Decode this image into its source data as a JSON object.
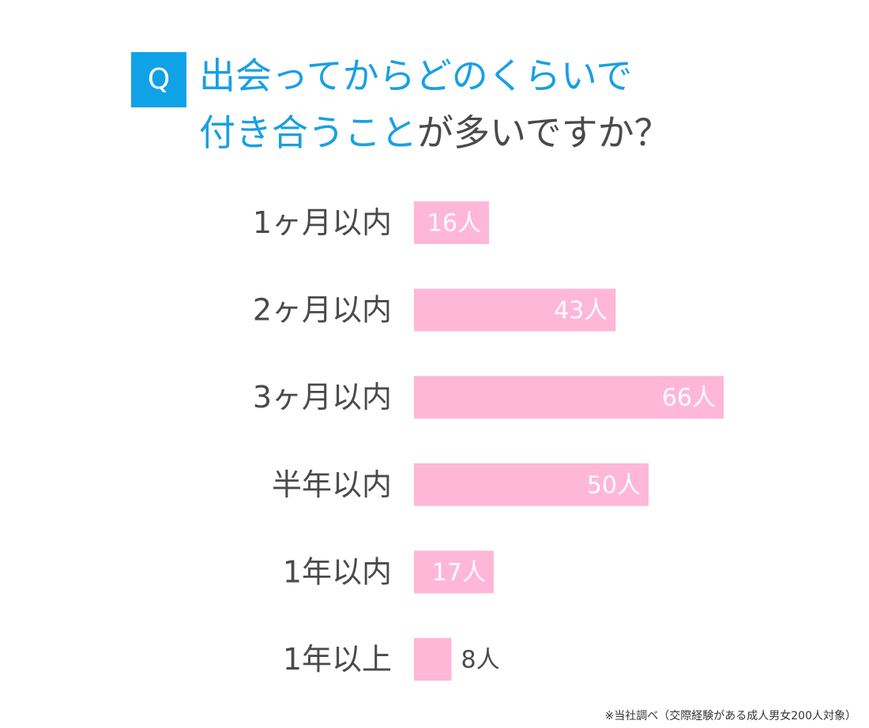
{
  "badge": "Q",
  "title": {
    "line1": "出会ってからどのくらいで",
    "line2_highlight": "付き合うこと",
    "line2_rest": "が多いですか？"
  },
  "colors": {
    "accent": "#10a2e7",
    "bar": "#ffb7d8",
    "label": "#4a4a4a",
    "value_inside": "#ffffff",
    "value_outside": "#4a4a4a"
  },
  "chart_data": {
    "type": "bar",
    "orientation": "horizontal",
    "categories": [
      "1ヶ月以内",
      "2ヶ月以内",
      "3ヶ月以内",
      "半年以内",
      "1年以内",
      "1年以上"
    ],
    "values": [
      16,
      43,
      66,
      50,
      17,
      8
    ],
    "value_labels": [
      "16人",
      "43人",
      "66人",
      "50人",
      "17人",
      "8人"
    ],
    "title": "出会ってからどのくらいで付き合うことが多いですか？",
    "xlabel": "",
    "ylabel": "",
    "xlim": [
      0,
      66
    ],
    "grid": false,
    "legend": "none"
  },
  "note": "※当社調べ（交際経験がある成人男女200人対象）"
}
